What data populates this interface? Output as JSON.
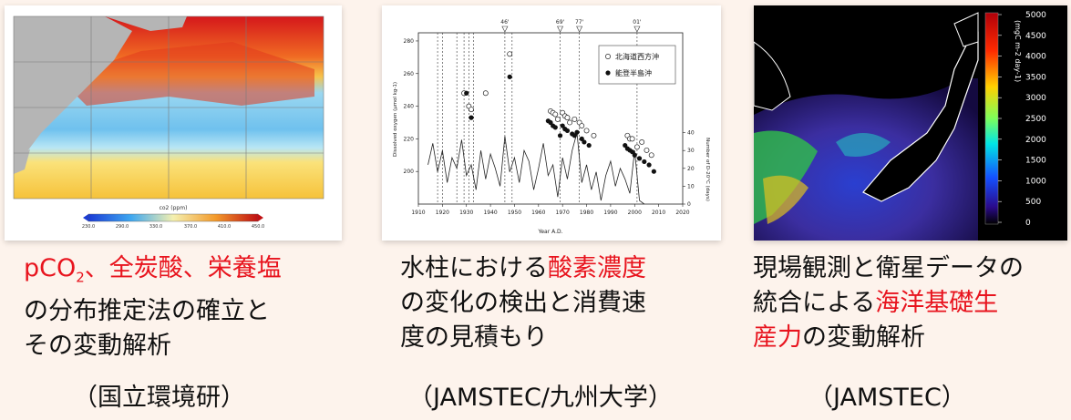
{
  "panels": [
    {
      "colorbar_label": "co2 (ppm)",
      "colorbar_ticks": [
        "230.0",
        "290.0",
        "330.0",
        "370.0",
        "410.0",
        "450.0"
      ],
      "caption": {
        "line1_prefix": "pCO",
        "line1_sub": "2",
        "line1_rest": "、全炭酸、栄養塩",
        "line2": "の分布推定法の確立と",
        "line3": "その変動解析"
      },
      "source": "（国立環境研）"
    },
    {
      "caption": {
        "line1_a": "水柱における",
        "line1_b": "酸素濃度",
        "line2": "の変化の検出と消費速",
        "line3": "度の見積もり"
      },
      "source": "（JAMSTEC/九州大学）"
    },
    {
      "colorbar_unit": "(mgC m-2 day-1)",
      "colorbar_ticks": [
        "5000",
        "4500",
        "4000",
        "3500",
        "3000",
        "2500",
        "2000",
        "1500",
        "1000",
        "500",
        "0"
      ],
      "caption": {
        "line1": "現場観測と衛星データの",
        "line2_a": "統合による",
        "line2_b": "海洋基礎生",
        "line3_a": "産力",
        "line3_b": "の変動解析"
      },
      "source": "（JAMSTEC）"
    }
  ],
  "chart_data": {
    "type": "scatter",
    "xlabel": "Year A.D.",
    "ylabel": "Dissolved oxygen (μmol kg-1)",
    "y2label": "Number of D-20°C (days)",
    "xlim": [
      1910,
      2020
    ],
    "ylim": [
      180,
      285
    ],
    "y2lim": [
      0,
      50
    ],
    "xticks": [
      "1910",
      "1920",
      "1930",
      "1940",
      "1950",
      "1960",
      "1970",
      "1980",
      "1990",
      "2000",
      "2010",
      "2020"
    ],
    "yticks": [
      "200",
      "220",
      "240",
      "260",
      "280"
    ],
    "y2ticks": [
      "0",
      "10",
      "20",
      "30",
      "40"
    ],
    "event_markers": [
      {
        "label": "46'",
        "x": 1946
      },
      {
        "label": "69'",
        "x": 1969
      },
      {
        "label": "77'",
        "x": 1977
      },
      {
        "label": "01'",
        "x": 2001
      }
    ],
    "vlines": [
      1918,
      1920,
      1926,
      1929,
      1931,
      1933,
      1946,
      1949,
      1969,
      1977,
      2001
    ],
    "series": [
      {
        "name": "北海道西方沖",
        "marker": "open",
        "x": [
          1929,
          1931,
          1932,
          1938,
          1948,
          1965,
          1966,
          1967,
          1968,
          1970,
          1971,
          1972,
          1973,
          1975,
          1977,
          1978,
          1980,
          1983,
          1997,
          1998,
          1999,
          2001,
          2003,
          2005,
          2007
        ],
        "y": [
          248,
          240,
          238,
          248,
          272,
          237,
          236,
          235,
          232,
          236,
          234,
          233,
          230,
          232,
          230,
          228,
          225,
          222,
          222,
          220,
          220,
          215,
          218,
          213,
          210
        ]
      },
      {
        "name": "能登半島沖",
        "marker": "filled",
        "x": [
          1930,
          1932,
          1948,
          1964,
          1965,
          1966,
          1967,
          1969,
          1970,
          1971,
          1972,
          1974,
          1975,
          1976,
          1978,
          1979,
          1981,
          1996,
          1997,
          1998,
          1999,
          2000,
          2002,
          2004,
          2006,
          2008
        ],
        "y": [
          248,
          233,
          258,
          231,
          230,
          228,
          227,
          222,
          228,
          226,
          225,
          223,
          222,
          224,
          220,
          218,
          216,
          216,
          214,
          213,
          212,
          210,
          208,
          206,
          204,
          200
        ]
      },
      {
        "name": "",
        "marker": "line",
        "x": [
          1914,
          1916,
          1918,
          1920,
          1922,
          1924,
          1926,
          1928,
          1930,
          1932,
          1934,
          1936,
          1938,
          1940,
          1942,
          1944,
          1946,
          1948,
          1950,
          1952,
          1954,
          1956,
          1958,
          1960,
          1962,
          1964,
          1966,
          1968,
          1970,
          1972,
          1974,
          1976,
          1978,
          1980,
          1982,
          1984,
          1986,
          1988,
          1990,
          1992,
          1994,
          1996,
          1998,
          2000,
          2002,
          2004
        ],
        "y2": [
          22,
          34,
          18,
          30,
          12,
          26,
          20,
          36,
          16,
          22,
          8,
          30,
          14,
          28,
          20,
          10,
          38,
          18,
          26,
          12,
          30,
          24,
          8,
          20,
          34,
          16,
          22,
          4,
          26,
          14,
          30,
          40,
          12,
          22,
          8,
          18,
          2,
          16,
          24,
          10,
          20,
          14,
          6,
          30,
          2,
          0
        ]
      }
    ]
  }
}
